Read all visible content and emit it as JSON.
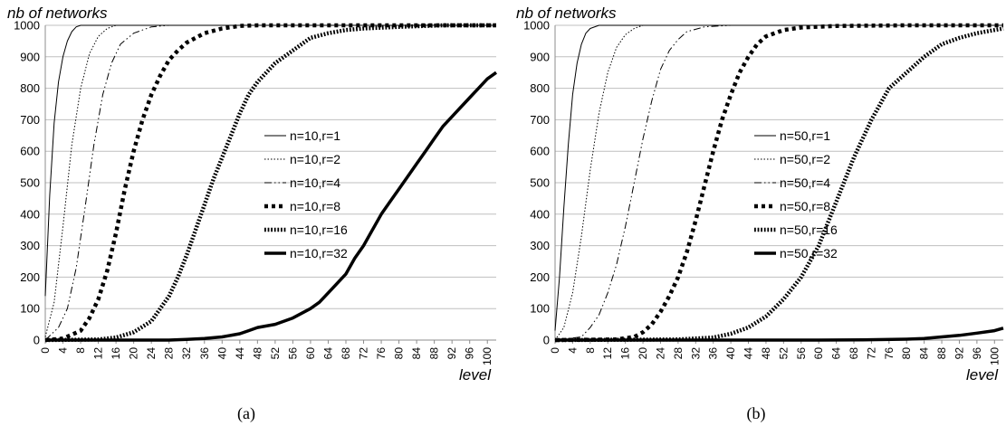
{
  "chart_data": [
    {
      "type": "line",
      "ylabel": "nb of networks",
      "xlabel": "level",
      "caption": "(a)",
      "ylim": [
        0,
        1000
      ],
      "yticks": [
        0,
        100,
        200,
        300,
        400,
        500,
        600,
        700,
        800,
        900,
        1000
      ],
      "xlim": [
        0,
        102
      ],
      "xticks": [
        0,
        4,
        8,
        12,
        16,
        20,
        24,
        28,
        32,
        36,
        40,
        44,
        48,
        52,
        56,
        60,
        64,
        68,
        72,
        76,
        80,
        84,
        88,
        92,
        96,
        100
      ],
      "grid": true,
      "legend_position": "center-right",
      "series": [
        {
          "name": "n=10,r=1",
          "style": "solid-thin",
          "points": [
            [
              0,
              140
            ],
            [
              1,
              460
            ],
            [
              2,
              690
            ],
            [
              3,
              820
            ],
            [
              4,
              900
            ],
            [
              5,
              950
            ],
            [
              6,
              980
            ],
            [
              7,
              995
            ],
            [
              8,
              1000
            ],
            [
              102,
              1000
            ]
          ]
        },
        {
          "name": "n=10,r=2",
          "style": "dotted-thin",
          "points": [
            [
              0,
              10
            ],
            [
              2,
              120
            ],
            [
              4,
              360
            ],
            [
              6,
              620
            ],
            [
              8,
              800
            ],
            [
              10,
              910
            ],
            [
              12,
              965
            ],
            [
              14,
              990
            ],
            [
              16,
              1000
            ],
            [
              102,
              1000
            ]
          ]
        },
        {
          "name": "n=10,r=4",
          "style": "dashdot-thin",
          "points": [
            [
              0,
              0
            ],
            [
              3,
              40
            ],
            [
              5,
              100
            ],
            [
              7,
              230
            ],
            [
              9,
              420
            ],
            [
              11,
              620
            ],
            [
              13,
              780
            ],
            [
              15,
              880
            ],
            [
              17,
              940
            ],
            [
              20,
              975
            ],
            [
              24,
              995
            ],
            [
              28,
              1000
            ],
            [
              102,
              1000
            ]
          ]
        },
        {
          "name": "n=10,r=8",
          "style": "dashed-thick",
          "points": [
            [
              0,
              0
            ],
            [
              4,
              5
            ],
            [
              8,
              30
            ],
            [
              10,
              70
            ],
            [
              12,
              130
            ],
            [
              14,
              220
            ],
            [
              16,
              340
            ],
            [
              18,
              480
            ],
            [
              20,
              600
            ],
            [
              22,
              700
            ],
            [
              24,
              780
            ],
            [
              26,
              840
            ],
            [
              28,
              890
            ],
            [
              30,
              920
            ],
            [
              32,
              945
            ],
            [
              36,
              975
            ],
            [
              40,
              990
            ],
            [
              44,
              998
            ],
            [
              48,
              1000
            ],
            [
              102,
              1000
            ]
          ]
        },
        {
          "name": "n=10,r=16",
          "style": "dotted-thick",
          "points": [
            [
              0,
              0
            ],
            [
              12,
              2
            ],
            [
              16,
              8
            ],
            [
              20,
              25
            ],
            [
              24,
              60
            ],
            [
              28,
              140
            ],
            [
              30,
              200
            ],
            [
              32,
              270
            ],
            [
              34,
              350
            ],
            [
              36,
              430
            ],
            [
              38,
              510
            ],
            [
              40,
              580
            ],
            [
              42,
              650
            ],
            [
              44,
              720
            ],
            [
              46,
              780
            ],
            [
              48,
              820
            ],
            [
              52,
              880
            ],
            [
              56,
              920
            ],
            [
              60,
              960
            ],
            [
              64,
              975
            ],
            [
              68,
              985
            ],
            [
              72,
              990
            ],
            [
              80,
              995
            ],
            [
              90,
              1000
            ],
            [
              102,
              1000
            ]
          ]
        },
        {
          "name": "n=10,r=32",
          "style": "solid-thick",
          "points": [
            [
              0,
              0
            ],
            [
              28,
              0
            ],
            [
              32,
              2
            ],
            [
              36,
              5
            ],
            [
              40,
              10
            ],
            [
              44,
              20
            ],
            [
              46,
              30
            ],
            [
              48,
              40
            ],
            [
              52,
              50
            ],
            [
              56,
              70
            ],
            [
              60,
              100
            ],
            [
              62,
              120
            ],
            [
              64,
              150
            ],
            [
              66,
              180
            ],
            [
              68,
              210
            ],
            [
              70,
              260
            ],
            [
              72,
              300
            ],
            [
              74,
              350
            ],
            [
              76,
              400
            ],
            [
              78,
              440
            ],
            [
              80,
              480
            ],
            [
              82,
              520
            ],
            [
              84,
              560
            ],
            [
              86,
              600
            ],
            [
              88,
              640
            ],
            [
              90,
              680
            ],
            [
              92,
              710
            ],
            [
              94,
              740
            ],
            [
              96,
              770
            ],
            [
              98,
              800
            ],
            [
              100,
              830
            ],
            [
              102,
              850
            ]
          ]
        }
      ]
    },
    {
      "type": "line",
      "ylabel": "nb of networks",
      "xlabel": "level",
      "caption": "(b)",
      "ylim": [
        0,
        1000
      ],
      "yticks": [
        0,
        100,
        200,
        300,
        400,
        500,
        600,
        700,
        800,
        900,
        1000
      ],
      "xlim": [
        0,
        102
      ],
      "xticks": [
        0,
        4,
        8,
        12,
        16,
        20,
        24,
        28,
        32,
        36,
        40,
        44,
        48,
        52,
        56,
        60,
        64,
        68,
        72,
        76,
        80,
        84,
        88,
        92,
        96,
        100
      ],
      "grid": true,
      "legend_position": "center-right",
      "series": [
        {
          "name": "n=50,r=1",
          "style": "solid-thin",
          "points": [
            [
              0,
              30
            ],
            [
              1,
              200
            ],
            [
              2,
              420
            ],
            [
              3,
              620
            ],
            [
              4,
              780
            ],
            [
              5,
              880
            ],
            [
              6,
              940
            ],
            [
              7,
              975
            ],
            [
              8,
              990
            ],
            [
              10,
              1000
            ],
            [
              102,
              1000
            ]
          ]
        },
        {
          "name": "n=50,r=2",
          "style": "dotted-thin",
          "points": [
            [
              0,
              0
            ],
            [
              2,
              40
            ],
            [
              4,
              150
            ],
            [
              6,
              330
            ],
            [
              8,
              540
            ],
            [
              10,
              720
            ],
            [
              12,
              850
            ],
            [
              14,
              930
            ],
            [
              16,
              970
            ],
            [
              18,
              990
            ],
            [
              20,
              1000
            ],
            [
              102,
              1000
            ]
          ]
        },
        {
          "name": "n=50,r=4",
          "style": "dashdot-thin",
          "points": [
            [
              0,
              0
            ],
            [
              6,
              10
            ],
            [
              8,
              40
            ],
            [
              10,
              80
            ],
            [
              12,
              150
            ],
            [
              14,
              240
            ],
            [
              16,
              360
            ],
            [
              18,
              500
            ],
            [
              20,
              640
            ],
            [
              22,
              760
            ],
            [
              24,
              860
            ],
            [
              26,
              920
            ],
            [
              28,
              955
            ],
            [
              30,
              980
            ],
            [
              34,
              995
            ],
            [
              40,
              1000
            ],
            [
              102,
              1000
            ]
          ]
        },
        {
          "name": "n=50,r=8",
          "style": "dashed-thick",
          "points": [
            [
              0,
              0
            ],
            [
              14,
              2
            ],
            [
              18,
              10
            ],
            [
              20,
              25
            ],
            [
              22,
              50
            ],
            [
              24,
              90
            ],
            [
              26,
              140
            ],
            [
              28,
              200
            ],
            [
              30,
              280
            ],
            [
              32,
              380
            ],
            [
              34,
              490
            ],
            [
              36,
              600
            ],
            [
              38,
              700
            ],
            [
              40,
              780
            ],
            [
              42,
              850
            ],
            [
              44,
              900
            ],
            [
              46,
              940
            ],
            [
              48,
              965
            ],
            [
              52,
              985
            ],
            [
              56,
              993
            ],
            [
              64,
              998
            ],
            [
              80,
              1000
            ],
            [
              102,
              1000
            ]
          ]
        },
        {
          "name": "n=50,r=16",
          "style": "dotted-thick",
          "points": [
            [
              0,
              0
            ],
            [
              28,
              2
            ],
            [
              36,
              8
            ],
            [
              40,
              20
            ],
            [
              44,
              40
            ],
            [
              48,
              75
            ],
            [
              52,
              130
            ],
            [
              56,
              200
            ],
            [
              58,
              250
            ],
            [
              60,
              300
            ],
            [
              62,
              370
            ],
            [
              64,
              440
            ],
            [
              66,
              510
            ],
            [
              68,
              580
            ],
            [
              70,
              640
            ],
            [
              72,
              700
            ],
            [
              74,
              750
            ],
            [
              76,
              800
            ],
            [
              80,
              850
            ],
            [
              84,
              900
            ],
            [
              88,
              940
            ],
            [
              92,
              960
            ],
            [
              96,
              975
            ],
            [
              100,
              985
            ],
            [
              102,
              990
            ]
          ]
        },
        {
          "name": "n=50,r=32",
          "style": "solid-thick",
          "points": [
            [
              0,
              0
            ],
            [
              60,
              0
            ],
            [
              70,
              1
            ],
            [
              80,
              3
            ],
            [
              84,
              5
            ],
            [
              88,
              10
            ],
            [
              92,
              15
            ],
            [
              96,
              22
            ],
            [
              100,
              30
            ],
            [
              102,
              38
            ]
          ]
        }
      ]
    }
  ]
}
